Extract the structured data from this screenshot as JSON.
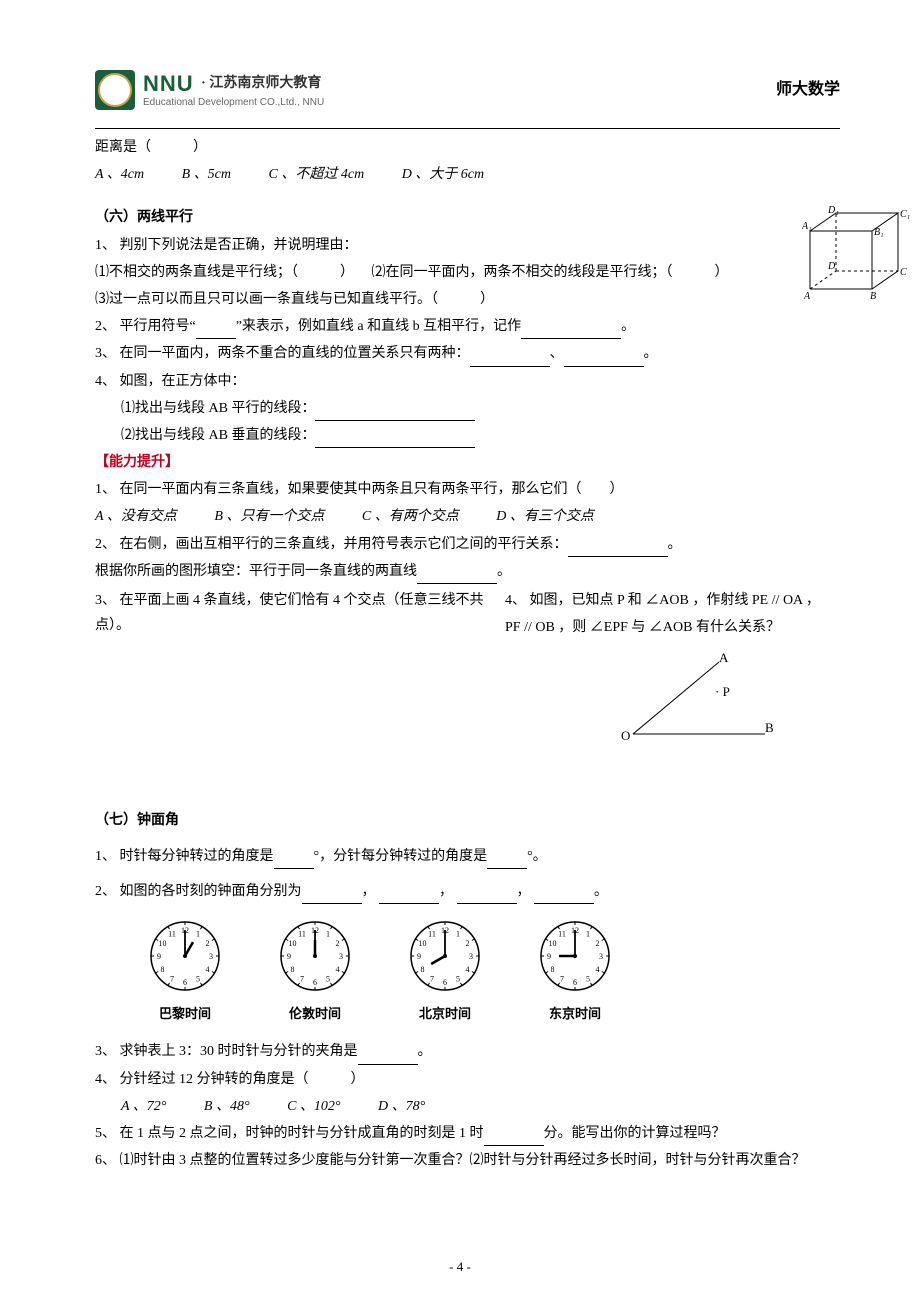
{
  "header": {
    "logo_main": "NNU",
    "logo_cn": "· 江苏南京师大教育",
    "logo_en": "Educational Development CO.,Ltd., NNU",
    "right_text": "师大数学"
  },
  "top_remainder": {
    "line": "距离是（　　　）",
    "options": {
      "A": "A 、4cm",
      "B": "B 、5cm",
      "C": "C 、不超过 4cm",
      "D": "D 、大于 6cm"
    }
  },
  "sec6": {
    "title": "（六）两线平行",
    "q1": "1、 判别下列说法是否正确，并说明理由：",
    "q1_1": "⑴不相交的两条直线是平行线；（　　　） 　⑵在同一平面内，两条不相交的线段是平行线；（　　　）",
    "q1_3": "⑶过一点可以而且只可以画一条直线与已知直线平行。（　　　）",
    "q2_a": "2、 平行用符号“",
    "q2_b": "”来表示，例如直线 a 和直线 b 互相平行，记作",
    "q2_c": "。",
    "q3_a": "3、 在同一平面内，两条不重合的直线的位置关系只有两种：",
    "q3_b": "、",
    "q3_c": "。",
    "q4": "4、 如图，在正方体中：",
    "q4_1": "⑴找出与线段 AB 平行的线段：",
    "q4_2": "⑵找出与线段 AB 垂直的线段：",
    "cube_labels": {
      "A": "A",
      "B": "B",
      "C": "C",
      "D": "D",
      "A1": "A₁",
      "B1": "B₁",
      "C1": "C₁",
      "D1": "D₁"
    }
  },
  "ability_title": "【能力提升】",
  "ability": {
    "q1": "1、 在同一平面内有三条直线，如果要使其中两条且只有两条平行，那么它们（　　）",
    "opts": {
      "A": "A 、没有交点",
      "B": "B 、只有一个交点",
      "C": "C 、有两个交点",
      "D": "D 、有三个交点"
    },
    "q2_a": "2、 在右侧，画出互相平行的三条直线，并用符号表示它们之间的平行关系：",
    "q2_b": "。",
    "q2_line2_a": "根据你所画的图形填空：平行于同一条直线的两直线",
    "q2_line2_b": "。",
    "q3": "3、 在平面上画 4 条直线，使它们恰有 4 个交点（任意三线不共点）。",
    "q4a": "4、 如图，已知点 P 和 ∠AOB ，作射线 PE // OA ，",
    "q4b": "PF // OB ，则 ∠EPF 与 ∠AOB 有什么关系？",
    "aob_labels": {
      "A": "A",
      "B": "B",
      "O": "O",
      "P": "· P"
    }
  },
  "sec7": {
    "title": "（七）钟面角",
    "q1_a": "1、 时针每分钟转过的角度是",
    "q1_b": "°，分针每分钟转过的角度是",
    "q1_c": "°。",
    "q2_a": "2、 如图的各时刻的钟面角分别为",
    "q2_b": "，",
    "q2_c": "，",
    "q2_d": "，",
    "q2_e": "。",
    "clocks": [
      {
        "label": "巴黎时间",
        "hour": 1,
        "minute": 0
      },
      {
        "label": "伦敦时间",
        "hour": 0,
        "minute": 0
      },
      {
        "label": "北京时间",
        "hour": 8,
        "minute": 0
      },
      {
        "label": "东京时间",
        "hour": 9,
        "minute": 0
      }
    ],
    "q3_a": "3、 求钟表上 3：30 时时针与分针的夹角是",
    "q3_b": "。",
    "q4": "4、 分针经过 12 分钟转的角度是（　　　）",
    "q4_opts": {
      "A": "A 、72°",
      "B": "B 、48°",
      "C": "C 、102°",
      "D": "D 、78°"
    },
    "q5_a": "5、 在 1 点与 2 点之间，时钟的时针与分针成直角的时刻是 1 时",
    "q5_b": "分。能写出你的计算过程吗？",
    "q6": "6、 ⑴时针由 3 点整的位置转过多少度能与分针第一次重合？⑵时针与分针再经过多长时间，时针与分针再次重合？"
  },
  "pagenum": "- 4 -",
  "style": {
    "page_bg": "#ffffff",
    "text_color": "#000000",
    "accent_color": "#c00020",
    "logo_green": "#1b5e3a",
    "clock_radius": 34
  }
}
